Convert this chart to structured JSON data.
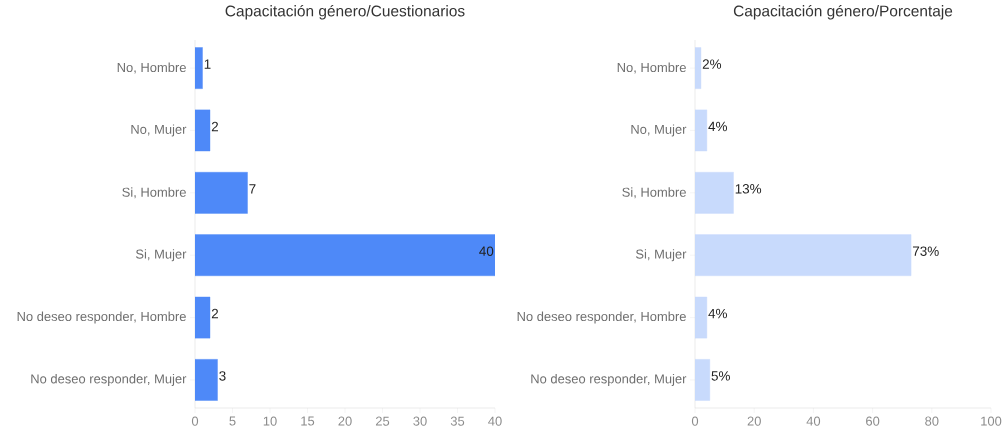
{
  "chart_data": [
    {
      "type": "bar",
      "orientation": "horizontal",
      "title": "Capacitación género/Cuestionarios",
      "categories": [
        "No, Hombre",
        "No, Mujer",
        "Si, Hombre",
        "Si, Mujer",
        "No deseo responder, Hombre",
        "No deseo responder, Mujer"
      ],
      "values": [
        1,
        2,
        7,
        40,
        2,
        3
      ],
      "color": "#4e89f8",
      "xlim": [
        0,
        40
      ],
      "xticks": [
        0,
        5,
        10,
        15,
        20,
        25,
        30,
        35,
        40
      ],
      "data_labels": true
    },
    {
      "type": "bar",
      "orientation": "horizontal",
      "title": "Capacitación género/Porcentaje",
      "categories": [
        "No, Hombre",
        "No, Mujer",
        "Si, Hombre",
        "Si, Mujer",
        "No deseo responder, Hombre",
        "No deseo responder, Mujer"
      ],
      "values": [
        2,
        4,
        13,
        73,
        4,
        5
      ],
      "value_labels": [
        "2%",
        "4%",
        "13%",
        "73%",
        "4%",
        "5%"
      ],
      "color": "#c8dafc",
      "xlim": [
        0,
        100
      ],
      "xticks": [
        0,
        20,
        40,
        60,
        80,
        100
      ]
    }
  ]
}
